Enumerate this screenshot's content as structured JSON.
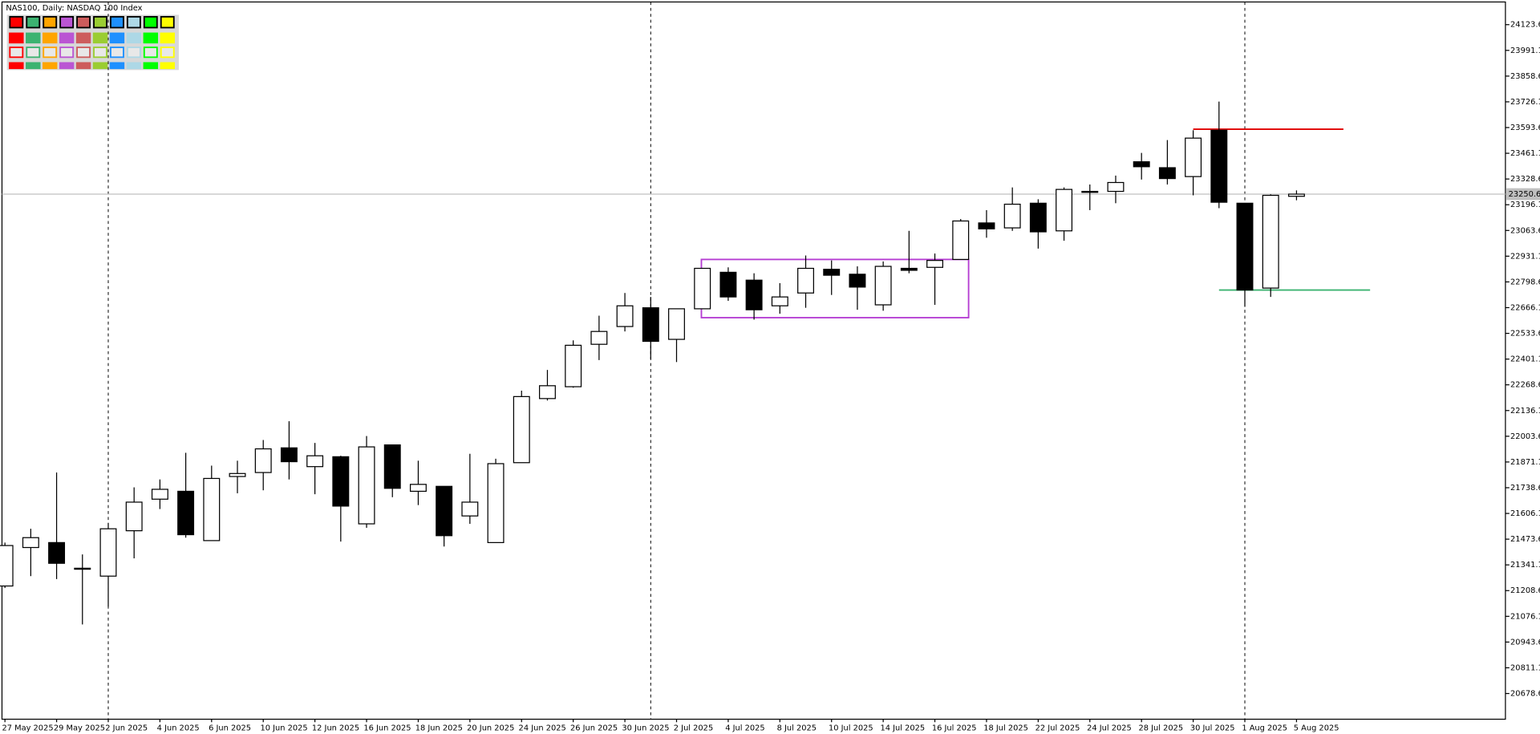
{
  "chart_data": {
    "type": "candlestick",
    "title": "NAS100, Daily:  NASDAQ 100 Index",
    "categories": [
      "27 May 2025",
      null,
      "29 May 2025",
      null,
      "2 Jun 2025",
      null,
      "4 Jun 2025",
      null,
      "6 Jun 2025",
      null,
      "10 Jun 2025",
      null,
      "12 Jun 2025",
      null,
      "16 Jun 2025",
      null,
      "18 Jun 2025",
      null,
      "20 Jun 2025",
      null,
      "24 Jun 2025",
      null,
      "26 Jun 2025",
      null,
      "30 Jun 2025",
      null,
      "2 Jul 2025",
      null,
      "4 Jul 2025",
      null,
      "8 Jul 2025",
      null,
      "10 Jul 2025",
      null,
      "14 Jul 2025",
      null,
      "16 Jul 2025",
      null,
      "18 Jul 2025",
      null,
      "22 Jul 2025",
      null,
      "24 Jul 2025",
      null,
      "28 Jul 2025",
      null,
      "30 Jul 2025",
      null,
      "1 Aug 2025",
      null,
      "5 Aug 2025"
    ],
    "open": [
      21232.4,
      21430.6,
      21456.0,
      21323.9,
      21283.2,
      21517.0,
      21679.6,
      21720.2,
      21466.2,
      21796.4,
      21816.8,
      21943.8,
      21847.2,
      21898.1,
      21552.5,
      21959.0,
      21720.2,
      21745.6,
      21593.2,
      21456.0,
      21867.6,
      22197.8,
      22258.8,
      22477.3,
      22568.8,
      22665.3,
      22502.7,
      22660.2,
      22848.2,
      22807.6,
      22675.5,
      22741.5,
      22863.5,
      22838.1,
      22680.5,
      22868.5,
      22873.6,
      22914.3,
      23102.3,
      23076.9,
      23203.9,
      23061.6,
      23259.8,
      23264.9,
      23417.3,
      23386.8,
      23341.1,
      23579.9,
      23203.9,
      22766.9,
      23239.5
    ],
    "high": [
      21456.0,
      21527.1,
      21816.8,
      21395.0,
      21557.6,
      21740.5,
      21781.2,
      21918.4,
      21852.3,
      21877.7,
      21984.4,
      22081.0,
      21969.2,
      21903.1,
      22004.8,
      21959.0,
      21877.7,
      21745.6,
      21913.3,
      21887.9,
      22238.5,
      22345.2,
      22497.6,
      22624.6,
      22741.5,
      22721.2,
      22660.2,
      22868.5,
      22873.6,
      22843.1,
      22792.3,
      22934.6,
      22909.2,
      22878.7,
      22904.1,
      23061.6,
      22944.8,
      23122.6,
      23168.3,
      23285.2,
      23224.2,
      23285.2,
      23300.4,
      23346.2,
      23463.0,
      23529.1,
      23579.9,
      23727.2,
      23203.9,
      23249.6,
      23269.9
    ],
    "low": [
      21222.3,
      21283.2,
      21268.0,
      21034.3,
      21125.7,
      21374.7,
      21628.8,
      21481.4,
      21466.2,
      21710.0,
      21725.3,
      21781.2,
      21705.0,
      21461.1,
      21532.2,
      21689.7,
      21649.1,
      21435.7,
      21552.5,
      21456.0,
      21867.6,
      22187.7,
      22253.7,
      22396.0,
      22543.4,
      22401.1,
      22385.8,
      22660.2,
      22700.9,
      22604.3,
      22634.8,
      22665.3,
      22731.4,
      22655.1,
      22650.1,
      22843.1,
      22680.5,
      22914.3,
      23026.1,
      23061.6,
      22970.2,
      23010.8,
      23168.3,
      23203.9,
      23325.8,
      23300.4,
      23244.5,
      23178.5,
      22670.4,
      22721.2,
      23219.1
    ],
    "close": [
      21440.8,
      21481.4,
      21349.3,
      21323.9,
      21527.1,
      21664.3,
      21730.4,
      21496.6,
      21786.3,
      21811.7,
      21938.7,
      21872.6,
      21903.1,
      21644.0,
      21948.9,
      21735.5,
      21755.8,
      21491.6,
      21664.3,
      21862.5,
      22208.0,
      22263.9,
      22472.2,
      22543.4,
      22675.5,
      22492.5,
      22660.2,
      22868.5,
      22721.2,
      22655.1,
      22721.2,
      22868.5,
      22833.0,
      22772.0,
      22878.7,
      22858.4,
      22909.2,
      23112.4,
      23071.8,
      23198.8,
      23056.5,
      23275.0,
      23264.9,
      23310.6,
      23391.9,
      23330.9,
      23539.2,
      23209.0,
      22756.8,
      23244.5,
      23250.6
    ],
    "up_color": "#ffffff",
    "down_color": "#000000",
    "ylim": [
      20546.3,
      24240.4
    ],
    "yticks": [
      20678.6,
      20811.1,
      20943.6,
      21076.1,
      21208.6,
      21341.1,
      21473.6,
      21606.1,
      21738.6,
      21871.1,
      22003.6,
      22136.1,
      22268.6,
      22401.1,
      22533.6,
      22666.1,
      22798.6,
      22931.1,
      23063.6,
      23196.1,
      23328.6,
      23461.1,
      23593.6,
      23726.1,
      23858.6,
      23991.1,
      24123.6
    ],
    "last_price": 23250.6,
    "levels": [
      {
        "value": 23585.0,
        "color": "#e00000"
      },
      {
        "value": 22756.8,
        "color": "#3cb371"
      }
    ],
    "box": {
      "top": 22914.3,
      "bottom": 22614.4,
      "color": "#b43cd2"
    }
  }
}
